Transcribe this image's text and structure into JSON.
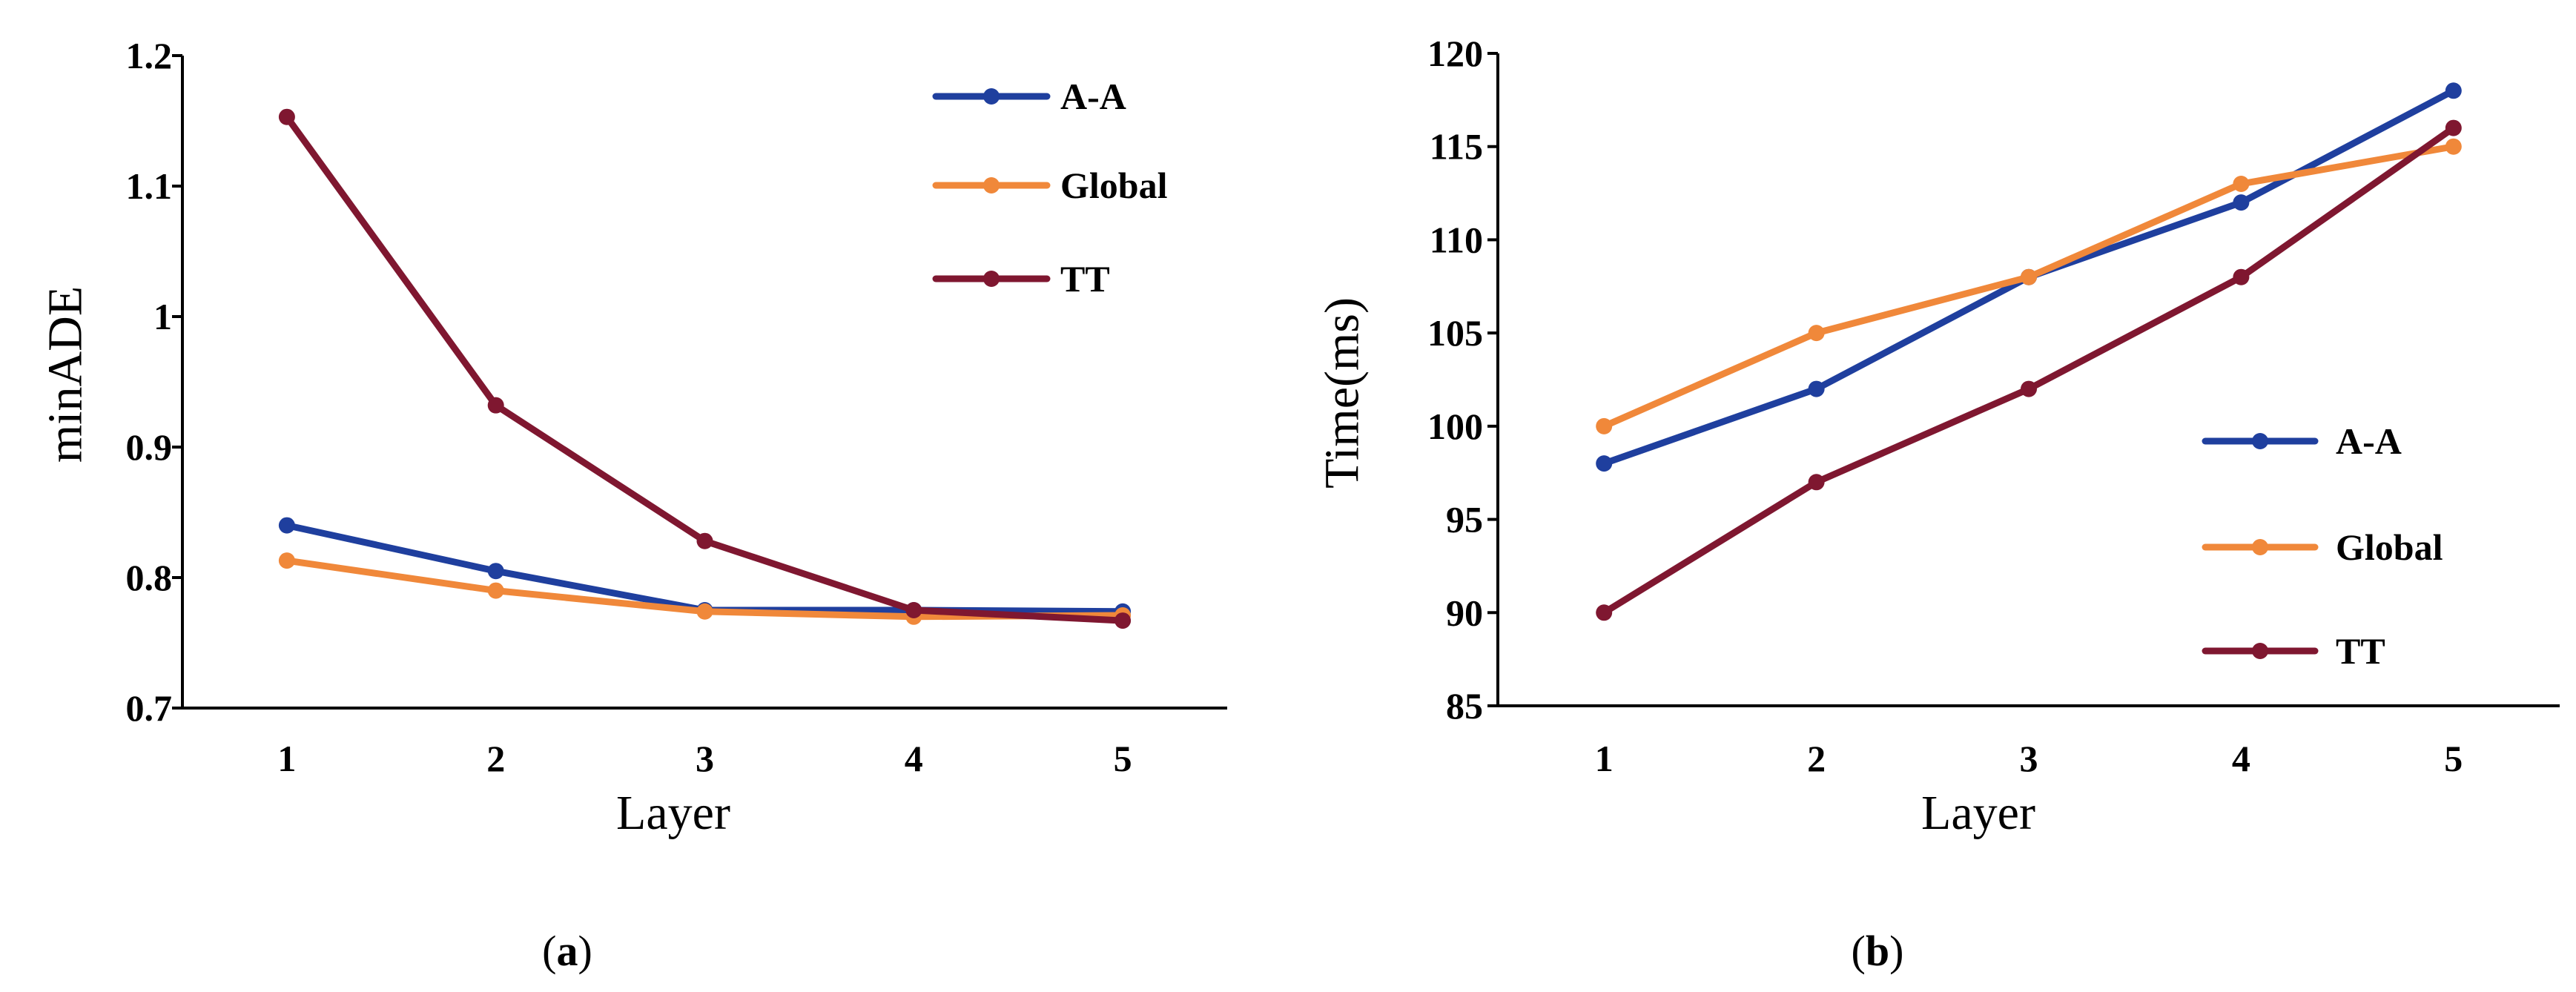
{
  "colors": {
    "A-A": "#1f3f9e",
    "Global": "#f0883a",
    "TT": "#7f1730",
    "axis": "#000000"
  },
  "chart_data": [
    {
      "type": "line",
      "caption": {
        "open": "(",
        "letter": "a",
        "close": ")"
      },
      "xlabel": "Layer",
      "ylabel": "minADE",
      "categories": [
        "1",
        "2",
        "3",
        "4",
        "5"
      ],
      "ylim": [
        0.7,
        1.2
      ],
      "yticks": [
        0.7,
        0.8,
        0.9,
        1,
        1.1,
        1.2
      ],
      "ytick_labels": [
        "0.7",
        "0.8",
        "0.9",
        "1",
        "1.1",
        "1.2"
      ],
      "grid": false,
      "legend_position": "top-right",
      "series": [
        {
          "name": "A-A",
          "color_key": "A-A",
          "values": [
            0.84,
            0.805,
            0.775,
            0.775,
            0.774
          ]
        },
        {
          "name": "Global",
          "color_key": "Global",
          "values": [
            0.813,
            0.79,
            0.774,
            0.77,
            0.771
          ]
        },
        {
          "name": "TT",
          "color_key": "TT",
          "values": [
            1.153,
            0.932,
            0.828,
            0.775,
            0.767
          ]
        }
      ]
    },
    {
      "type": "line",
      "caption": {
        "open": "(",
        "letter": "b",
        "close": ")"
      },
      "xlabel": "Layer",
      "ylabel": "Time(ms)",
      "categories": [
        "1",
        "2",
        "3",
        "4",
        "5"
      ],
      "ylim": [
        85,
        120
      ],
      "yticks": [
        85,
        90,
        95,
        100,
        105,
        110,
        115,
        120
      ],
      "ytick_labels": [
        "85",
        "90",
        "95",
        "100",
        "105",
        "110",
        "115",
        "120"
      ],
      "grid": false,
      "legend_position": "center-right",
      "series": [
        {
          "name": "A-A",
          "color_key": "A-A",
          "values": [
            98,
            102,
            108,
            112,
            118
          ]
        },
        {
          "name": "Global",
          "color_key": "Global",
          "values": [
            100,
            105,
            108,
            113,
            115
          ]
        },
        {
          "name": "TT",
          "color_key": "TT",
          "values": [
            90,
            97,
            102,
            108,
            116
          ]
        }
      ]
    }
  ]
}
